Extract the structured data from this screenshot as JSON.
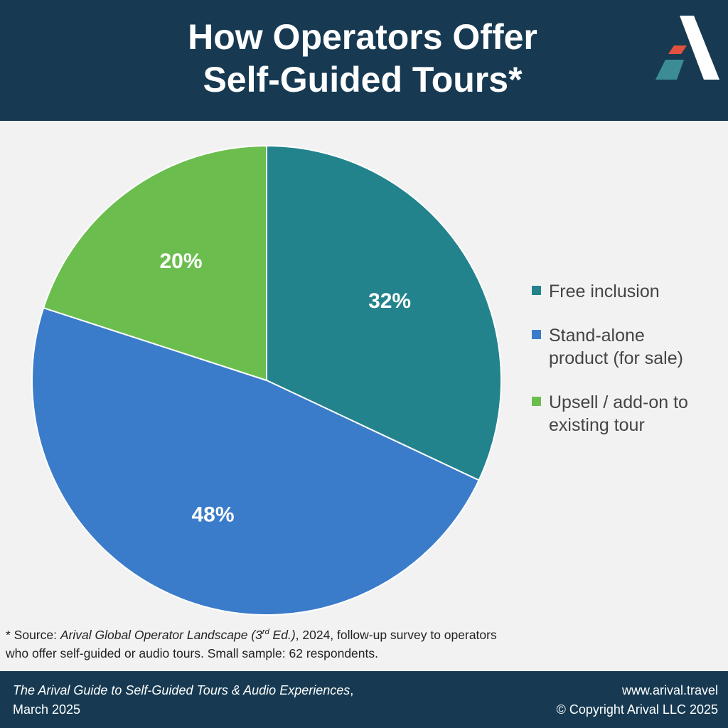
{
  "header": {
    "title_line1": "How Operators Offer",
    "title_line2": "Self-Guided Tours*"
  },
  "colors": {
    "header_bg": "#173a52",
    "teal": "#22838d",
    "blue": "#3b7cca",
    "green": "#6bbe4e",
    "logo_red": "#e0523f",
    "logo_teal": "#3c8c96"
  },
  "chart_data": {
    "type": "pie",
    "slices": [
      {
        "label": "Free inclusion",
        "value": 32,
        "display": "32%",
        "color": "#22838d"
      },
      {
        "label": "Stand-alone product (for sale)",
        "value": 48,
        "display": "48%",
        "color": "#3b7cca"
      },
      {
        "label": "Upsell / add-on to existing tour",
        "value": 20,
        "display": "20%",
        "color": "#6bbe4e"
      }
    ],
    "legend_position": "right"
  },
  "legend": {
    "item1_line1": "Free inclusion",
    "item2_line1": "Stand-alone",
    "item2_line2": "product (for sale)",
    "item3_line1": "Upsell / add-on to",
    "item3_line2": "existing tour"
  },
  "source": {
    "prefix": "* Source: ",
    "publication": "Arival Global Operator Landscape (3",
    "sup": "rd",
    "publication_end": " Ed.)",
    "rest_line1": ", 2024, follow-up survey to operators",
    "line2": "who offer self-guided or audio tours.  Small sample: 62 respondents."
  },
  "footer": {
    "guide_title": "The Arival Guide to Self-Guided Tours & Audio Experiences",
    "date": ", March 2025",
    "website": "www.arival.travel",
    "copyright": "© Copyright Arival LLC 2025"
  }
}
